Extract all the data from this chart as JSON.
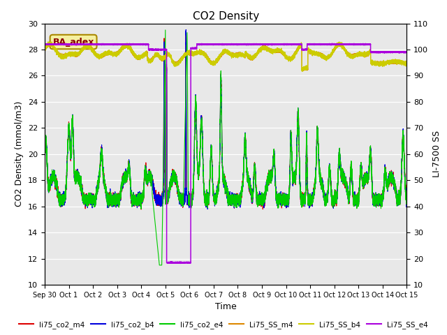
{
  "title": "CO2 Density",
  "ylabel_left": "CO2 Density (mmol/m3)",
  "ylabel_right": "LI-7500 SS",
  "xlabel": "Time",
  "ylim_left": [
    10,
    30
  ],
  "ylim_right": [
    10,
    110
  ],
  "background_color": "#e8e8e8",
  "annotation_text": "BA_adex",
  "annotation_color": "#8b0000",
  "annotation_bg": "#f5f0a0",
  "xtick_labels": [
    "Sep 30",
    "Oct 1",
    "Oct 2",
    "Oct 3",
    "Oct 4",
    "Oct 5",
    "Oct 6",
    "Oct 7",
    "Oct 8",
    "Oct 9",
    "Oct 10",
    "Oct 11",
    "Oct 12",
    "Oct 13",
    "Oct 14",
    "Oct 15"
  ],
  "legend_labels": [
    "li75_co2_m4",
    "li75_co2_b4",
    "li75_co2_e4",
    "Li75_SS_m4",
    "Li75_SS_b4",
    "Li75_SS_e4"
  ],
  "legend_colors": [
    "#dd0000",
    "#0000dd",
    "#00cc00",
    "#dd8800",
    "#cccc00",
    "#aa00dd"
  ],
  "co2_color_m4": "#dd0000",
  "co2_color_b4": "#0000dd",
  "co2_color_e4": "#00cc00",
  "ss_color_m4": "#dd8800",
  "ss_color_b4": "#cccc00",
  "ss_color_e4": "#aa00dd"
}
